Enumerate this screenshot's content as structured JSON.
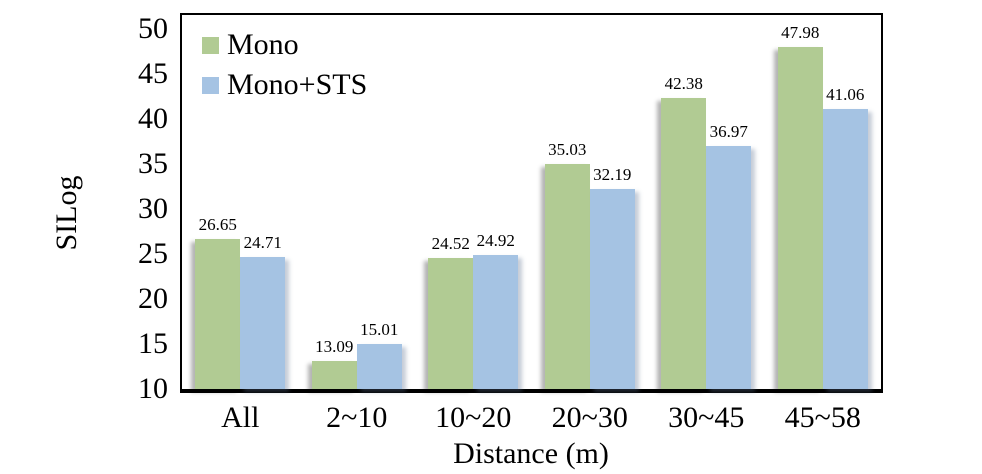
{
  "chart_data": {
    "type": "bar",
    "categories": [
      "All",
      "2~10",
      "10~20",
      "20~30",
      "30~45",
      "45~58"
    ],
    "series": [
      {
        "name": "Mono",
        "color": "#b1cb93",
        "values": [
          26.65,
          13.09,
          24.52,
          35.03,
          42.38,
          47.98
        ]
      },
      {
        "name": "Mono+STS",
        "color": "#a5c3e3",
        "values": [
          24.71,
          15.01,
          24.92,
          32.19,
          36.97,
          41.06
        ]
      }
    ],
    "xlabel": "Distance (m)",
    "ylabel": "SILog",
    "ylim": [
      10,
      50
    ],
    "yticks": [
      10,
      15,
      20,
      25,
      30,
      35,
      40,
      45,
      50
    ],
    "grid": false,
    "legend_position": "top-left",
    "title": ""
  }
}
